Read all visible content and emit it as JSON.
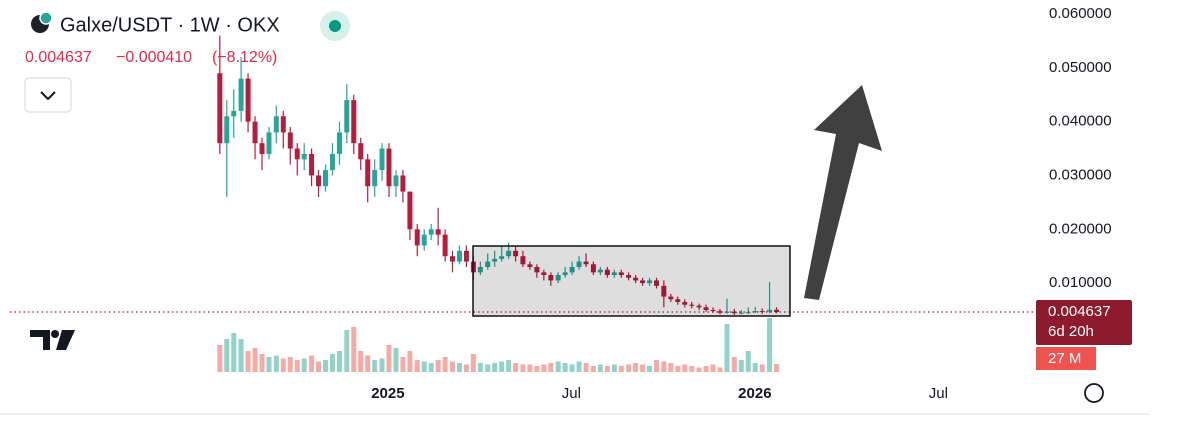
{
  "chart_data": {
    "type": "candlestick",
    "title": "Galxe/USDT · 1W · OKX",
    "last_price": "0.004637",
    "change": "−0.000410",
    "change_pct": "(−8.12%)",
    "price_tag": "0.004637",
    "countdown": "6d 20h",
    "volume_tag": "27 M",
    "up_color": "#26a69a",
    "down_color": "#b71c3c",
    "volume_up_color": "#93d2c9",
    "volume_down_color": "#f5aaa6",
    "xlim": [
      2023.943,
      2026.777
    ],
    "xticks": [
      {
        "value": 2025,
        "label": "2025"
      },
      {
        "value": 2025.5,
        "label": "Jul"
      },
      {
        "value": 2026,
        "label": "2026"
      },
      {
        "value": 2026.5,
        "label": "Jul"
      }
    ],
    "ylim": [
      -0.008,
      0.0626
    ],
    "yticks": [
      {
        "value": 0.01,
        "label": "0.010000"
      },
      {
        "value": 0.02,
        "label": "0.020000"
      },
      {
        "value": 0.03,
        "label": "0.030000"
      },
      {
        "value": 0.04,
        "label": "0.040000"
      },
      {
        "value": 0.05,
        "label": "0.050000"
      },
      {
        "value": 0.06,
        "label": "0.060000"
      }
    ],
    "x": [
      2024.542,
      2024.561,
      2024.58,
      2024.6,
      2024.619,
      2024.638,
      2024.657,
      2024.676,
      2024.696,
      2024.715,
      2024.734,
      2024.753,
      2024.772,
      2024.792,
      2024.811,
      2024.83,
      2024.849,
      2024.868,
      2024.888,
      2024.907,
      2024.926,
      2024.945,
      2024.964,
      2024.984,
      2025.003,
      2025.022,
      2025.041,
      2025.06,
      2025.08,
      2025.099,
      2025.118,
      2025.137,
      2025.156,
      2025.176,
      2025.195,
      2025.214,
      2025.233,
      2025.252,
      2025.272,
      2025.291,
      2025.31,
      2025.329,
      2025.348,
      2025.368,
      2025.387,
      2025.406,
      2025.425,
      2025.444,
      2025.464,
      2025.483,
      2025.502,
      2025.521,
      2025.54,
      2025.56,
      2025.579,
      2025.598,
      2025.617,
      2025.636,
      2025.656,
      2025.675,
      2025.694,
      2025.713,
      2025.732,
      2025.752,
      2025.771,
      2025.79,
      2025.809,
      2025.828,
      2025.848,
      2025.867,
      2025.886,
      2025.905,
      2025.924,
      2025.944,
      2025.963,
      2025.982,
      2026.001,
      2026.02,
      2026.04,
      2026.059
    ],
    "open": [
      0.049,
      0.036,
      0.041,
      0.042,
      0.048,
      0.04,
      0.036,
      0.034,
      0.038,
      0.041,
      0.038,
      0.035,
      0.033,
      0.034,
      0.03,
      0.028,
      0.031,
      0.034,
      0.038,
      0.044,
      0.036,
      0.033,
      0.028,
      0.031,
      0.035,
      0.028,
      0.03,
      0.027,
      0.02,
      0.017,
      0.019,
      0.02,
      0.019,
      0.015,
      0.014,
      0.016,
      0.014,
      0.012,
      0.013,
      0.014,
      0.0145,
      0.015,
      0.016,
      0.015,
      0.0135,
      0.013,
      0.012,
      0.0115,
      0.0105,
      0.0115,
      0.012,
      0.013,
      0.014,
      0.0135,
      0.012,
      0.0125,
      0.0115,
      0.012,
      0.0115,
      0.011,
      0.0105,
      0.01,
      0.0105,
      0.0095,
      0.0075,
      0.007,
      0.0065,
      0.006,
      0.0058,
      0.0055,
      0.005,
      0.0048,
      0.0045,
      0.0047,
      0.0044,
      0.0045,
      0.0046,
      0.0048,
      0.0047,
      0.005047
    ],
    "high": [
      0.056,
      0.044,
      0.046,
      0.052,
      0.049,
      0.041,
      0.037,
      0.039,
      0.043,
      0.042,
      0.039,
      0.036,
      0.036,
      0.035,
      0.031,
      0.032,
      0.036,
      0.04,
      0.047,
      0.045,
      0.037,
      0.034,
      0.033,
      0.036,
      0.036,
      0.031,
      0.031,
      0.027,
      0.021,
      0.02,
      0.021,
      0.024,
      0.02,
      0.016,
      0.017,
      0.017,
      0.015,
      0.014,
      0.0155,
      0.016,
      0.017,
      0.0175,
      0.017,
      0.016,
      0.014,
      0.0135,
      0.0125,
      0.012,
      0.012,
      0.013,
      0.014,
      0.015,
      0.0155,
      0.014,
      0.013,
      0.013,
      0.0125,
      0.0125,
      0.012,
      0.0115,
      0.011,
      0.011,
      0.011,
      0.0105,
      0.008,
      0.0075,
      0.007,
      0.0065,
      0.0062,
      0.006,
      0.0055,
      0.0052,
      0.0071,
      0.0052,
      0.005,
      0.0055,
      0.0056,
      0.0053,
      0.0102,
      0.0055
    ],
    "low": [
      0.034,
      0.026,
      0.037,
      0.04,
      0.038,
      0.033,
      0.031,
      0.033,
      0.036,
      0.035,
      0.032,
      0.03,
      0.031,
      0.028,
      0.026,
      0.027,
      0.03,
      0.032,
      0.036,
      0.034,
      0.031,
      0.025,
      0.026,
      0.029,
      0.026,
      0.026,
      0.025,
      0.018,
      0.015,
      0.016,
      0.018,
      0.017,
      0.014,
      0.012,
      0.0135,
      0.013,
      0.0105,
      0.0115,
      0.0125,
      0.013,
      0.014,
      0.0145,
      0.014,
      0.013,
      0.0125,
      0.011,
      0.0105,
      0.0095,
      0.01,
      0.011,
      0.0115,
      0.0125,
      0.013,
      0.0115,
      0.0115,
      0.011,
      0.011,
      0.011,
      0.0105,
      0.01,
      0.0095,
      0.0095,
      0.009,
      0.0055,
      0.0065,
      0.006,
      0.0055,
      0.0053,
      0.005,
      0.0047,
      0.0045,
      0.0042,
      0.0043,
      0.0041,
      0.0042,
      0.0043,
      0.0044,
      0.0043,
      0.0044,
      0.0044
    ],
    "close": [
      0.036,
      0.041,
      0.042,
      0.048,
      0.04,
      0.036,
      0.034,
      0.038,
      0.041,
      0.038,
      0.035,
      0.033,
      0.034,
      0.03,
      0.028,
      0.031,
      0.034,
      0.038,
      0.044,
      0.036,
      0.033,
      0.028,
      0.031,
      0.035,
      0.028,
      0.03,
      0.027,
      0.02,
      0.017,
      0.019,
      0.02,
      0.019,
      0.015,
      0.014,
      0.016,
      0.014,
      0.012,
      0.013,
      0.014,
      0.0145,
      0.015,
      0.016,
      0.015,
      0.0135,
      0.013,
      0.012,
      0.0115,
      0.0105,
      0.0115,
      0.012,
      0.013,
      0.014,
      0.0135,
      0.012,
      0.0125,
      0.0115,
      0.012,
      0.0115,
      0.011,
      0.0105,
      0.01,
      0.0105,
      0.0095,
      0.0075,
      0.007,
      0.0065,
      0.006,
      0.0058,
      0.0055,
      0.005,
      0.0048,
      0.0045,
      0.0047,
      0.0044,
      0.0045,
      0.0046,
      0.0048,
      0.0047,
      0.005047,
      0.004637
    ],
    "volume": [
      90,
      110,
      130,
      110,
      70,
      80,
      60,
      50,
      55,
      45,
      50,
      40,
      45,
      55,
      35,
      40,
      60,
      70,
      140,
      150,
      70,
      55,
      40,
      45,
      90,
      80,
      50,
      70,
      40,
      35,
      30,
      40,
      50,
      35,
      30,
      25,
      60,
      30,
      25,
      30,
      35,
      40,
      30,
      25,
      25,
      20,
      25,
      30,
      35,
      30,
      25,
      35,
      30,
      20,
      25,
      20,
      25,
      20,
      25,
      30,
      25,
      20,
      40,
      35,
      30,
      20,
      25,
      20,
      15,
      20,
      25,
      15,
      160,
      50,
      40,
      70,
      30,
      25,
      180,
      27
    ]
  }
}
